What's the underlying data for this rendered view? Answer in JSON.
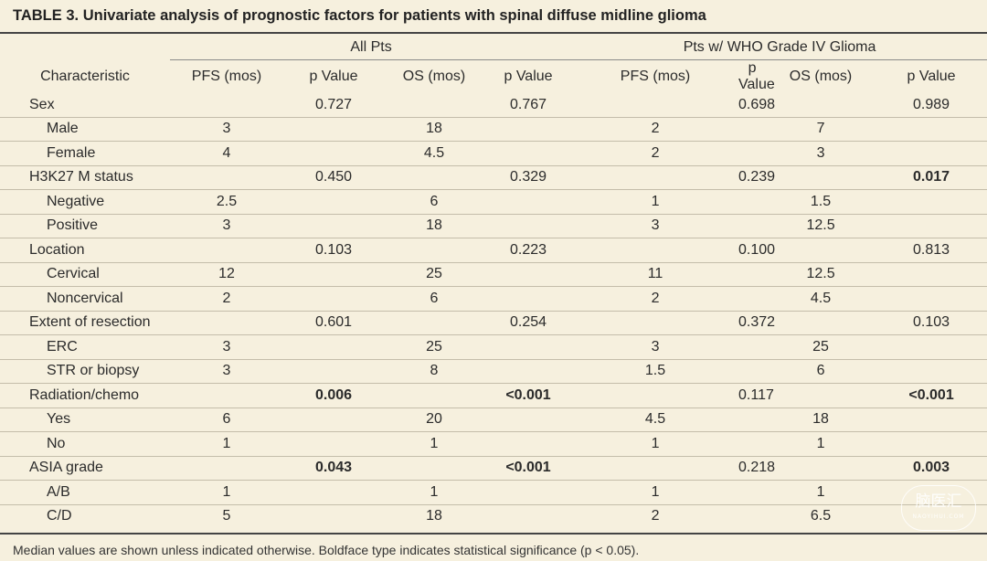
{
  "title": "TABLE 3. Univariate analysis of prognostic factors for patients with spinal diffuse midline glioma",
  "groups": [
    "All Pts",
    "Pts w/ WHO Grade IV Glioma"
  ],
  "columns": [
    "Characteristic",
    "PFS (mos)",
    "p Value",
    "OS (mos)",
    "p Value",
    "PFS (mos)",
    "p Value",
    "OS (mos)",
    "p Value"
  ],
  "rows": [
    {
      "label": "Sex",
      "indent": false,
      "cells": [
        "",
        "0.727",
        "",
        "0.767",
        "",
        "0.698",
        "",
        "0.989"
      ],
      "bold": []
    },
    {
      "label": "Male",
      "indent": true,
      "cells": [
        "3",
        "",
        "18",
        "",
        "2",
        "",
        "7",
        ""
      ],
      "bold": []
    },
    {
      "label": "Female",
      "indent": true,
      "cells": [
        "4",
        "",
        "4.5",
        "",
        "2",
        "",
        "3",
        ""
      ],
      "bold": []
    },
    {
      "label": "H3K27 M status",
      "indent": false,
      "cells": [
        "",
        "0.450",
        "",
        "0.329",
        "",
        "0.239",
        "",
        "0.017"
      ],
      "bold": [
        7
      ]
    },
    {
      "label": "Negative",
      "indent": true,
      "cells": [
        "2.5",
        "",
        "6",
        "",
        "1",
        "",
        "1.5",
        ""
      ],
      "bold": []
    },
    {
      "label": "Positive",
      "indent": true,
      "cells": [
        "3",
        "",
        "18",
        "",
        "3",
        "",
        "12.5",
        ""
      ],
      "bold": []
    },
    {
      "label": "Location",
      "indent": false,
      "cells": [
        "",
        "0.103",
        "",
        "0.223",
        "",
        "0.100",
        "",
        "0.813"
      ],
      "bold": []
    },
    {
      "label": "Cervical",
      "indent": true,
      "cells": [
        "12",
        "",
        "25",
        "",
        "11",
        "",
        "12.5",
        ""
      ],
      "bold": []
    },
    {
      "label": "Noncervical",
      "indent": true,
      "cells": [
        "2",
        "",
        "6",
        "",
        "2",
        "",
        "4.5",
        ""
      ],
      "bold": []
    },
    {
      "label": "Extent of resection",
      "indent": false,
      "cells": [
        "",
        "0.601",
        "",
        "0.254",
        "",
        "0.372",
        "",
        "0.103"
      ],
      "bold": []
    },
    {
      "label": "ERC",
      "indent": true,
      "cells": [
        "3",
        "",
        "25",
        "",
        "3",
        "",
        "25",
        ""
      ],
      "bold": []
    },
    {
      "label": "STR or biopsy",
      "indent": true,
      "cells": [
        "3",
        "",
        "8",
        "",
        "1.5",
        "",
        "6",
        ""
      ],
      "bold": []
    },
    {
      "label": "Radiation/chemo",
      "indent": false,
      "cells": [
        "",
        "0.006",
        "",
        "<0.001",
        "",
        "0.117",
        "",
        "<0.001"
      ],
      "bold": [
        1,
        3,
        7
      ]
    },
    {
      "label": "Yes",
      "indent": true,
      "cells": [
        "6",
        "",
        "20",
        "",
        "4.5",
        "",
        "18",
        ""
      ],
      "bold": []
    },
    {
      "label": "No",
      "indent": true,
      "cells": [
        "1",
        "",
        "1",
        "",
        "1",
        "",
        "1",
        ""
      ],
      "bold": []
    },
    {
      "label": "ASIA grade",
      "indent": false,
      "cells": [
        "",
        "0.043",
        "",
        "<0.001",
        "",
        "0.218",
        "",
        "0.003"
      ],
      "bold": [
        1,
        3,
        7
      ]
    },
    {
      "label": "A/B",
      "indent": true,
      "cells": [
        "1",
        "",
        "1",
        "",
        "1",
        "",
        "1",
        ""
      ],
      "bold": []
    },
    {
      "label": "C/D",
      "indent": true,
      "cells": [
        "5",
        "",
        "18",
        "",
        "2",
        "",
        "6.5",
        ""
      ],
      "bold": []
    }
  ],
  "footnote": "Median values are shown unless indicated otherwise. Boldface type indicates statistical significance (p < 0.05).",
  "watermark": {
    "text": "脑医汇",
    "small": "NAOYIHUI.COM",
    "color": "#ffffff"
  },
  "colors": {
    "background": "#f6f0de",
    "rule": "#444444",
    "row_line": "#c4bdaa"
  }
}
